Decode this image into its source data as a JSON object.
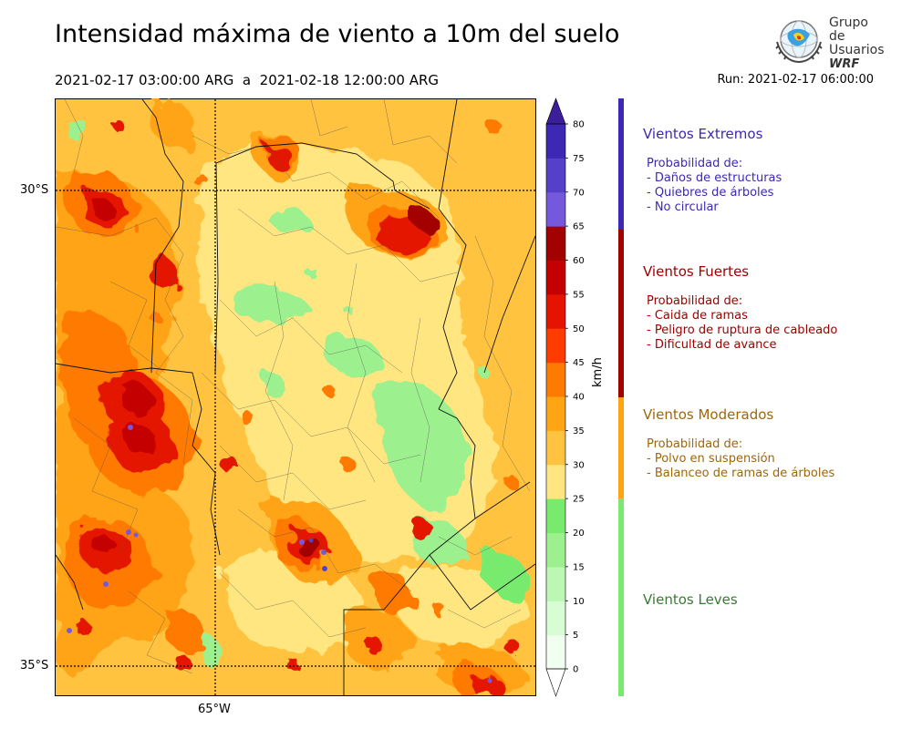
{
  "header": {
    "title": "Intensidad máxima de viento a 10m del suelo",
    "period": "2021-02-17 03:00:00 ARG  a  2021-02-18 12:00:00 ARG",
    "run": "Run: 2021-02-17 06:00:00"
  },
  "logo": {
    "line1": "Grupo de",
    "line2": "Usuarios",
    "line3": "WRF"
  },
  "map": {
    "lat_labels": [
      "30°S",
      "35°S"
    ],
    "lon_labels": [
      "65°W"
    ]
  },
  "colorbar": {
    "unit": "km/h",
    "ticks": [
      "0",
      "5",
      "10",
      "15",
      "20",
      "25",
      "30",
      "35",
      "40",
      "45",
      "50",
      "55",
      "60",
      "65",
      "70",
      "75",
      "80"
    ],
    "colors": [
      "#f0fff0",
      "#d8fcd4",
      "#bcf7b4",
      "#9cf08e",
      "#78ea6e",
      "#ffe680",
      "#ffc340",
      "#ffa412",
      "#ff7a00",
      "#ff3c00",
      "#e51400",
      "#c40000",
      "#a30000",
      "#7559dd",
      "#5540c8",
      "#3c28b4"
    ],
    "extend_color": "#3c1e9a"
  },
  "categories": [
    {
      "title": "Vientos Extremos",
      "color": "#3c28b4",
      "items": [
        "Probabilidad de:",
        "- Daños de estructuras",
        "- Quiebres de árboles",
        "- No circular"
      ]
    },
    {
      "title": "Vientos Fuertes",
      "color": "#a00000",
      "items": [
        "Probabilidad de:",
        "- Caida de ramas",
        "- Peligro de ruptura de cableado",
        "- Dificultad de avance"
      ]
    },
    {
      "title": "Vientos Moderados",
      "color": "#a0660a",
      "bar_color": "#ffa412",
      "items": [
        "Probabilidad de:",
        "- Polvo en suspensión",
        "- Balanceo de ramas de árboles"
      ]
    },
    {
      "title": "Vientos Leves",
      "color": "#3a7a34",
      "bar_color": "#78ea6e",
      "items": []
    }
  ]
}
